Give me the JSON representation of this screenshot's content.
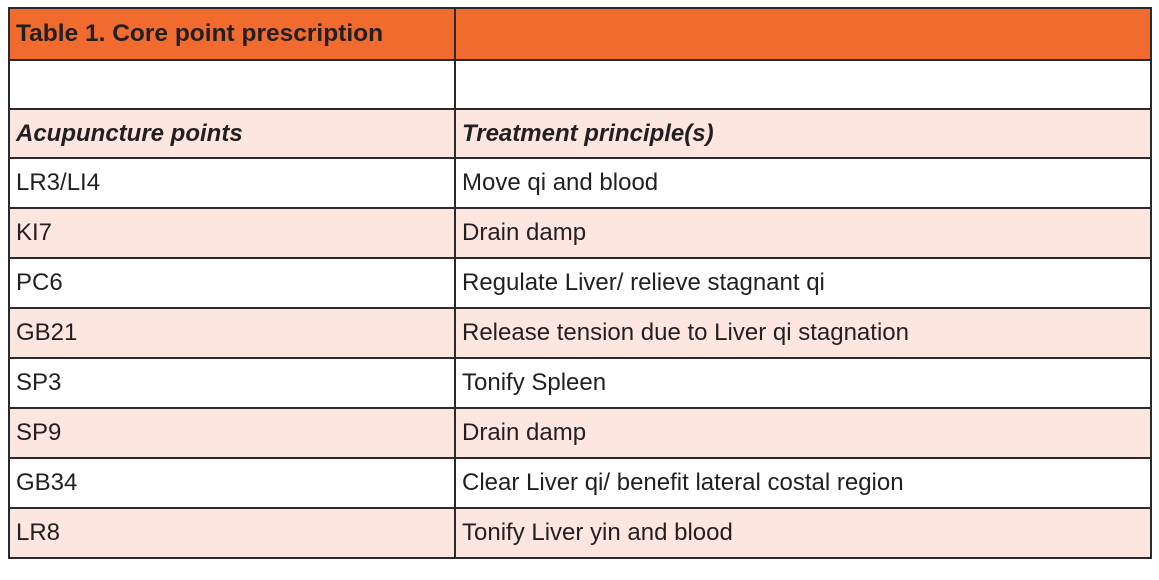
{
  "table": {
    "title": "Table 1. Core point prescription",
    "headers": {
      "points": "Acupuncture points",
      "principles": "Treatment principle(s)"
    },
    "rows": [
      {
        "point": "LR3/LI4",
        "principle": "Move qi and blood"
      },
      {
        "point": "KI7",
        "principle": "Drain damp"
      },
      {
        "point": "PC6",
        "principle": "Regulate Liver/ relieve stagnant qi"
      },
      {
        "point": "GB21",
        "principle": "Release tension due to Liver qi stagnation"
      },
      {
        "point": "SP3",
        "principle": "Tonify Spleen"
      },
      {
        "point": "SP9",
        "principle": "Drain damp"
      },
      {
        "point": "GB34",
        "principle": "Clear Liver qi/ benefit lateral costal region"
      },
      {
        "point": "LR8",
        "principle": "Tonify Liver yin and blood"
      }
    ]
  },
  "colors": {
    "title_band": "#f26b2e",
    "alt_row": "#fde6df",
    "border": "#2a2a2a",
    "text": "#231f20"
  }
}
